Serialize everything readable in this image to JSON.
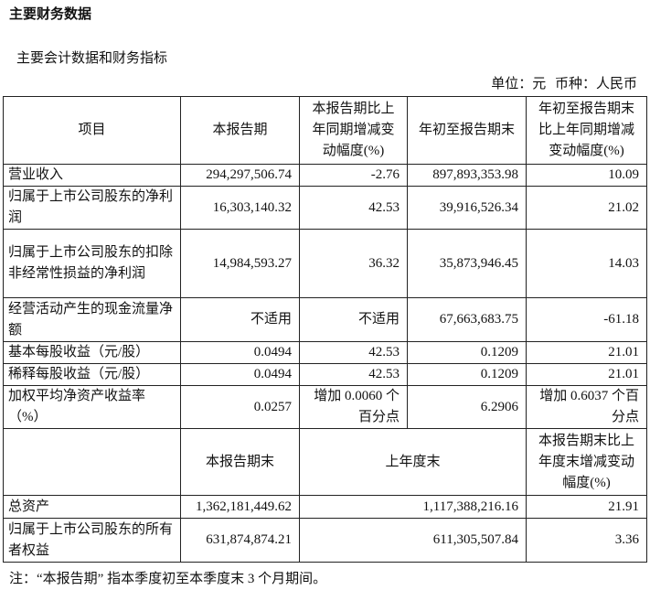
{
  "title": "主要财务数据",
  "subtitle": "主要会计数据和财务指标",
  "unit": "单位：元 币种：人民币",
  "header": [
    "项目",
    "本报告期",
    "本报告期比上年同期增减变动幅度(%)",
    "年初至报告期末",
    "年初至报告期末比上年同期增减变动幅度(%)"
  ],
  "rows": [
    [
      "营业收入",
      "294,297,506.74",
      "-2.76",
      "897,893,353.98",
      "10.09"
    ],
    [
      "归属于上市公司股东的净利润",
      "16,303,140.32",
      "42.53",
      "39,916,526.34",
      "21.02"
    ],
    [
      "归属于上市公司股东的扣除非经常性损益的净利润",
      "14,984,593.27",
      "36.32",
      "35,873,946.45",
      "14.03"
    ],
    [
      "经营活动产生的现金流量净额",
      "不适用",
      "不适用",
      "67,663,683.75",
      "-61.18"
    ],
    [
      "基本每股收益（元/股）",
      "0.0494",
      "42.53",
      "0.1209",
      "21.01"
    ],
    [
      "稀释每股收益（元/股）",
      "0.0494",
      "42.53",
      "0.1209",
      "21.01"
    ],
    [
      "加权平均净资产收益率（%）",
      "0.0257",
      "增加 0.0060 个百分点",
      "6.2906",
      "增加 0.6037 个百分点"
    ]
  ],
  "header2": [
    "",
    "本报告期末",
    "上年度末",
    "本报告期末比上年度末增减变动幅度(%)"
  ],
  "rows2": [
    [
      "总资产",
      "1,362,181,449.62",
      "1,117,388,216.16",
      "21.91"
    ],
    [
      "归属于上市公司股东的所有者权益",
      "631,874,874.21",
      "611,305,507.84",
      "3.36"
    ]
  ],
  "note": "注：“本报告期” 指本季度初至本季度末 3 个月期间。"
}
